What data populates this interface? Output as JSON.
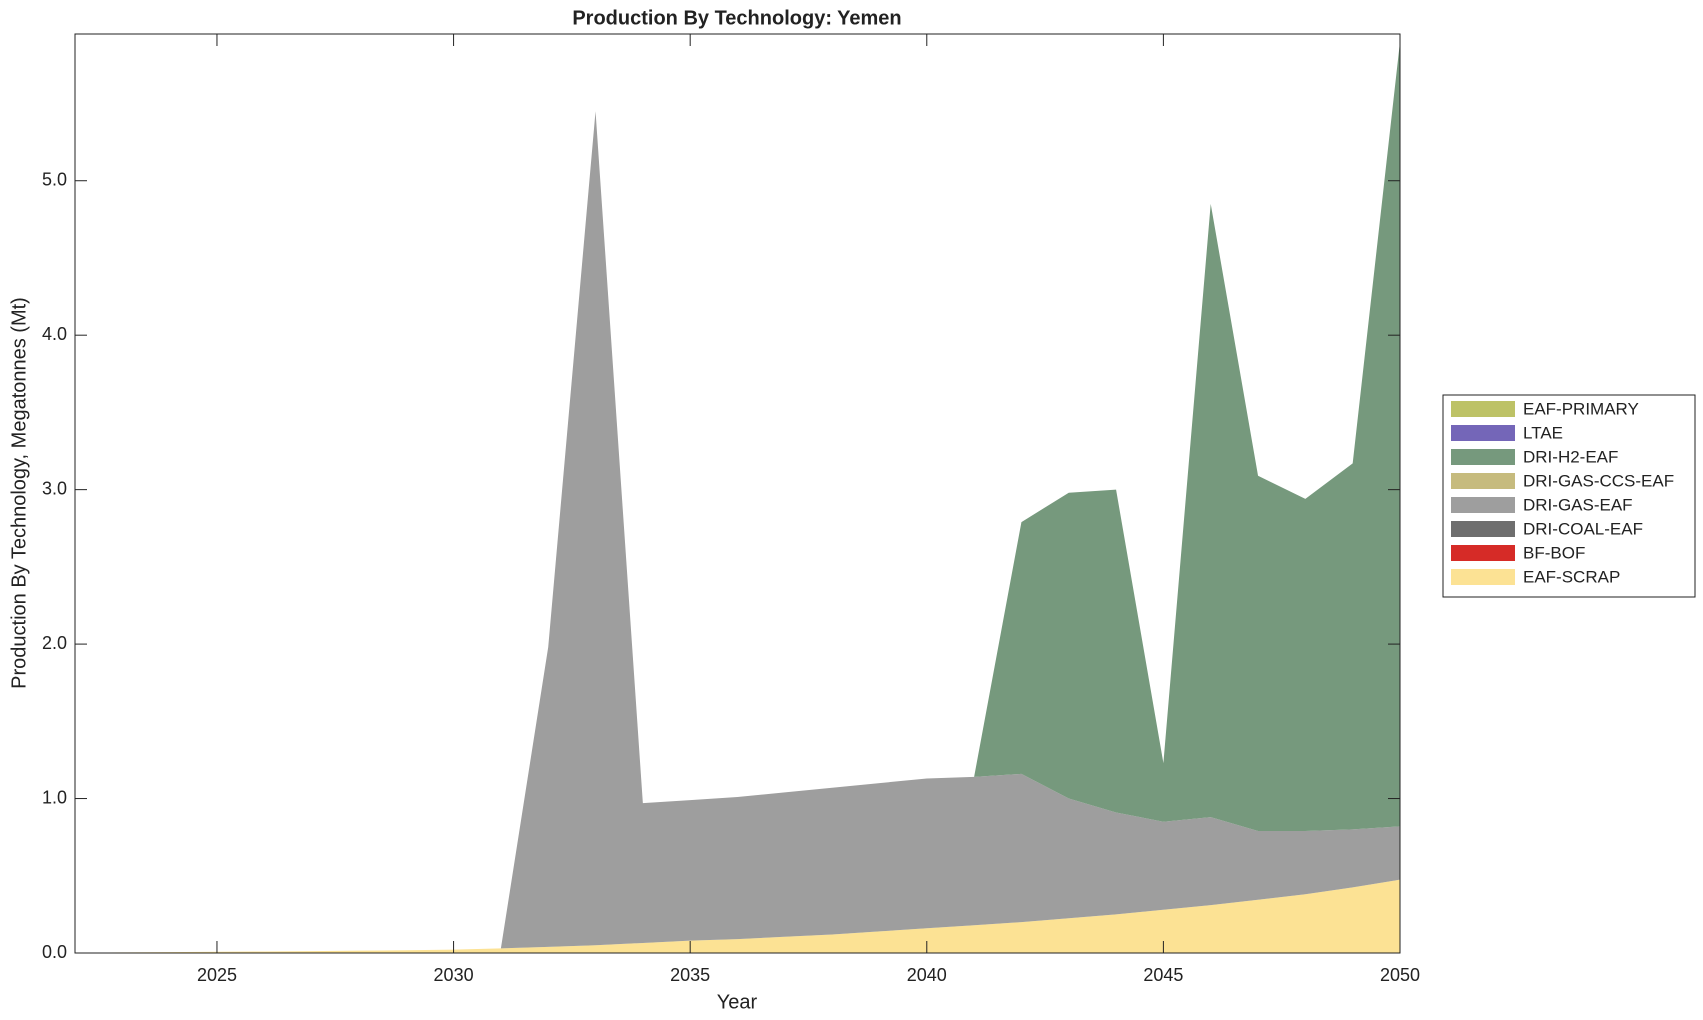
{
  "chart_data": {
    "type": "stacked_area",
    "title": "Production By Technology: Yemen",
    "x_label": "Year",
    "y_label": "Production By Technology, Megatonnes (Mt)",
    "x": [
      2022,
      2023,
      2024,
      2025,
      2026,
      2027,
      2028,
      2029,
      2030,
      2031,
      2032,
      2033,
      2034,
      2035,
      2036,
      2037,
      2038,
      2039,
      2040,
      2041,
      2042,
      2043,
      2044,
      2045,
      2046,
      2047,
      2048,
      2049,
      2050
    ],
    "series": [
      {
        "name": "EAF-SCRAP",
        "color": "#fce294",
        "values": [
          0.002,
          0.004,
          0.006,
          0.008,
          0.01,
          0.012,
          0.015,
          0.018,
          0.022,
          0.03,
          0.04,
          0.05,
          0.065,
          0.08,
          0.09,
          0.105,
          0.12,
          0.14,
          0.16,
          0.18,
          0.2,
          0.225,
          0.25,
          0.28,
          0.31,
          0.345,
          0.38,
          0.425,
          0.475
        ]
      },
      {
        "name": "BF-BOF",
        "color": "#d62b27",
        "values": [
          0,
          0,
          0,
          0,
          0,
          0,
          0,
          0,
          0,
          0,
          0,
          0,
          0,
          0,
          0,
          0,
          0,
          0,
          0,
          0,
          0,
          0,
          0,
          0,
          0,
          0,
          0,
          0,
          0
        ]
      },
      {
        "name": "DRI-COAL-EAF",
        "color": "#6e6e6e",
        "values": [
          0,
          0,
          0,
          0,
          0,
          0,
          0,
          0,
          0,
          0,
          0,
          0,
          0,
          0,
          0,
          0,
          0,
          0,
          0,
          0,
          0,
          0,
          0,
          0,
          0,
          0,
          0,
          0,
          0
        ]
      },
      {
        "name": "DRI-GAS-EAF",
        "color": "#9e9e9e",
        "values": [
          0,
          0,
          0,
          0,
          0,
          0,
          0,
          0,
          0,
          0,
          1.94,
          5.4,
          0.905,
          0.91,
          0.92,
          0.935,
          0.95,
          0.96,
          0.97,
          0.96,
          0.96,
          0.775,
          0.66,
          0.57,
          0.57,
          0.445,
          0.41,
          0.375,
          0.345
        ]
      },
      {
        "name": "DRI-GAS-CCS-EAF",
        "color": "#c6bb7e",
        "values": [
          0,
          0,
          0,
          0,
          0,
          0,
          0,
          0,
          0,
          0,
          0,
          0,
          0,
          0,
          0,
          0,
          0,
          0,
          0,
          0,
          0,
          0,
          0,
          0,
          0,
          0,
          0,
          0,
          0
        ]
      },
      {
        "name": "DRI-H2-EAF",
        "color": "#76997d",
        "values": [
          0,
          0,
          0,
          0,
          0,
          0,
          0,
          0,
          0,
          0,
          0,
          0,
          0,
          0,
          0,
          0,
          0,
          0,
          0,
          0,
          1.63,
          1.98,
          2.09,
          0.38,
          3.97,
          2.3,
          2.15,
          2.37,
          5.08
        ]
      },
      {
        "name": "LTAE",
        "color": "#7466b8",
        "values": [
          0,
          0,
          0,
          0,
          0,
          0,
          0,
          0,
          0,
          0,
          0,
          0,
          0,
          0,
          0,
          0,
          0,
          0,
          0,
          0,
          0,
          0,
          0,
          0,
          0,
          0,
          0,
          0,
          0
        ]
      },
      {
        "name": "EAF-PRIMARY",
        "color": "#bdc266",
        "values": [
          0,
          0,
          0,
          0,
          0,
          0,
          0,
          0,
          0,
          0,
          0,
          0,
          0,
          0,
          0,
          0,
          0,
          0,
          0,
          0,
          0,
          0,
          0,
          0,
          0,
          0,
          0,
          0,
          0
        ]
      }
    ],
    "xlim": [
      2022,
      2050
    ],
    "xticks": [
      2025,
      2030,
      2035,
      2040,
      2045,
      2050
    ],
    "ylim": [
      0,
      5.95
    ],
    "yticks": [
      {
        "value": 0,
        "label": "0.0"
      },
      {
        "value": 1,
        "label": "1.0"
      },
      {
        "value": 2,
        "label": "2.0"
      },
      {
        "value": 3,
        "label": "3.0"
      },
      {
        "value": 4,
        "label": "4.0"
      },
      {
        "value": 5,
        "label": "5.0"
      }
    ],
    "grid": false,
    "legend": "right"
  }
}
